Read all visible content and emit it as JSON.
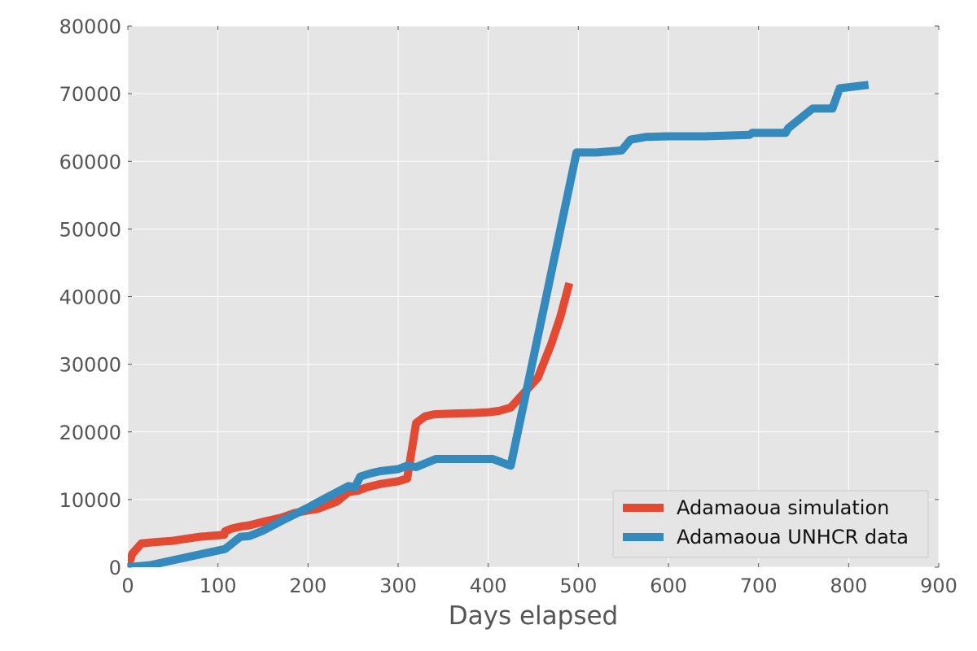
{
  "chart_data": {
    "type": "line",
    "title": "",
    "xlabel": "Days elapsed",
    "ylabel": "",
    "xlim": [
      0,
      900
    ],
    "ylim": [
      0,
      80000
    ],
    "xticks": [
      0,
      100,
      200,
      300,
      400,
      500,
      600,
      700,
      800,
      900
    ],
    "yticks": [
      0,
      10000,
      20000,
      30000,
      40000,
      50000,
      60000,
      70000,
      80000
    ],
    "grid": true,
    "legend_position": "lower-right",
    "background": "#e5e5e5",
    "series": [
      {
        "name": "Adamaoua simulation",
        "color": "#e24a33",
        "points": [
          [
            0,
            0
          ],
          [
            5,
            2000
          ],
          [
            15,
            3500
          ],
          [
            30,
            3700
          ],
          [
            50,
            3900
          ],
          [
            65,
            4200
          ],
          [
            80,
            4500
          ],
          [
            100,
            4700
          ],
          [
            107,
            4800
          ],
          [
            108,
            5300
          ],
          [
            115,
            5700
          ],
          [
            125,
            6000
          ],
          [
            135,
            6200
          ],
          [
            150,
            6700
          ],
          [
            170,
            7300
          ],
          [
            185,
            8000
          ],
          [
            200,
            8400
          ],
          [
            210,
            8600
          ],
          [
            220,
            9100
          ],
          [
            232,
            9700
          ],
          [
            245,
            11100
          ],
          [
            255,
            11300
          ],
          [
            265,
            11800
          ],
          [
            280,
            12300
          ],
          [
            300,
            12700
          ],
          [
            310,
            13100
          ],
          [
            320,
            21300
          ],
          [
            330,
            22300
          ],
          [
            340,
            22600
          ],
          [
            360,
            22700
          ],
          [
            385,
            22800
          ],
          [
            400,
            22900
          ],
          [
            412,
            23100
          ],
          [
            425,
            23600
          ],
          [
            440,
            25800
          ],
          [
            455,
            28000
          ],
          [
            470,
            33000
          ],
          [
            480,
            37000
          ],
          [
            490,
            42000
          ]
        ]
      },
      {
        "name": "Adamaoua UNHCR data",
        "color": "#348abd",
        "points": [
          [
            0,
            0
          ],
          [
            25,
            300
          ],
          [
            108,
            2700
          ],
          [
            125,
            4500
          ],
          [
            135,
            4600
          ],
          [
            150,
            5400
          ],
          [
            170,
            6800
          ],
          [
            200,
            8800
          ],
          [
            215,
            9900
          ],
          [
            245,
            12000
          ],
          [
            252,
            11800
          ],
          [
            258,
            13400
          ],
          [
            270,
            13900
          ],
          [
            280,
            14200
          ],
          [
            300,
            14500
          ],
          [
            310,
            15000
          ],
          [
            320,
            14800
          ],
          [
            342,
            16000
          ],
          [
            405,
            16000
          ],
          [
            425,
            15000
          ],
          [
            498,
            61300
          ],
          [
            520,
            61300
          ],
          [
            548,
            61600
          ],
          [
            558,
            63200
          ],
          [
            575,
            63600
          ],
          [
            600,
            63700
          ],
          [
            640,
            63700
          ],
          [
            690,
            63900
          ],
          [
            693,
            64200
          ],
          [
            730,
            64200
          ],
          [
            733,
            64900
          ],
          [
            760,
            67800
          ],
          [
            782,
            67800
          ],
          [
            790,
            70800
          ],
          [
            822,
            71300
          ]
        ]
      }
    ]
  }
}
